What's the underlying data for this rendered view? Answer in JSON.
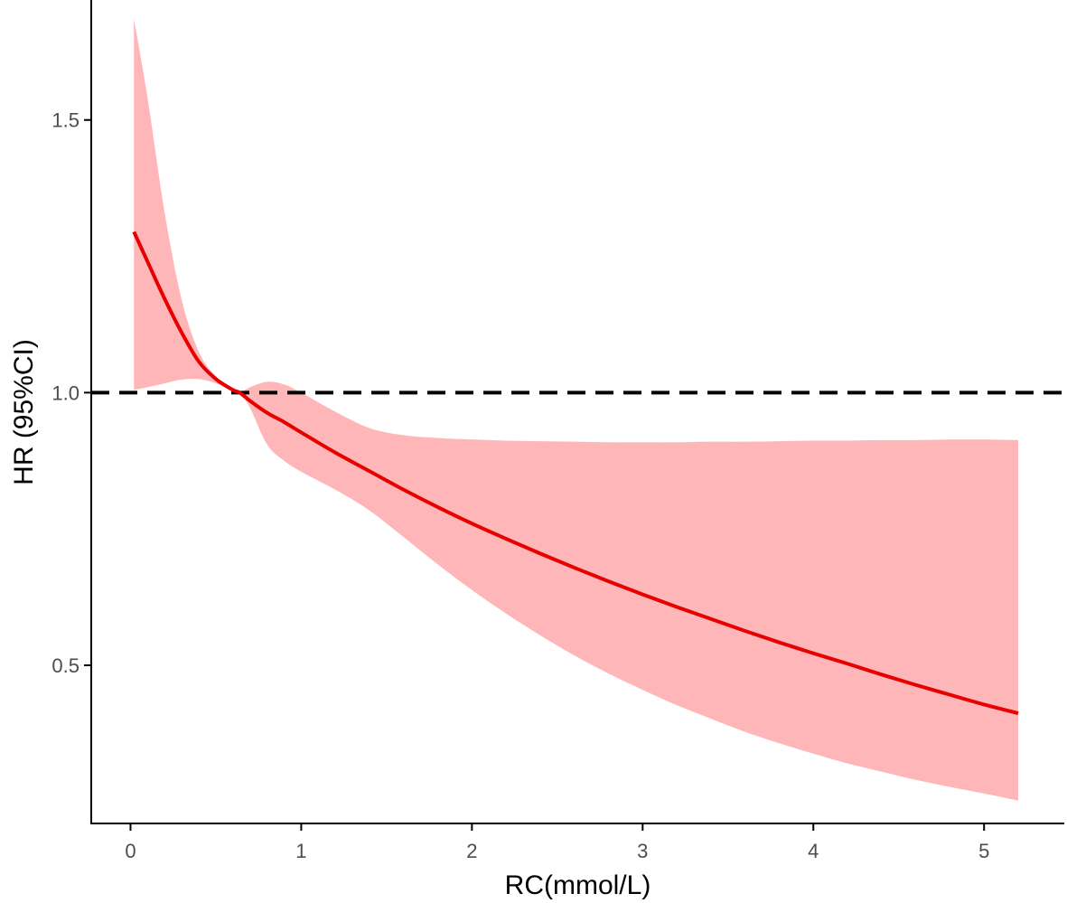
{
  "chart_data": {
    "type": "line",
    "title": "",
    "xlabel": "RC(mmol/L)",
    "ylabel": "HR (95%CI)",
    "xlim": [
      -0.23,
      5.47
    ],
    "ylim": [
      0.21,
      1.72
    ],
    "x_ticks": [
      0,
      1,
      2,
      3,
      4,
      5
    ],
    "x_tick_labels": [
      "0",
      "1",
      "2",
      "3",
      "4",
      "5"
    ],
    "y_ticks": [
      0.5,
      1.0,
      1.5
    ],
    "y_tick_labels": [
      "0.5",
      "1.0",
      "1.5"
    ],
    "grid": false,
    "legend": "none",
    "reference_line": {
      "y": 1.0,
      "style": "dashed",
      "color": "#000000"
    },
    "series": [
      {
        "x": [
          0.02,
          0.1,
          0.2,
          0.3,
          0.4,
          0.5,
          0.6,
          0.64,
          0.7,
          0.8,
          0.9,
          1.0,
          1.2,
          1.4,
          1.6,
          1.8,
          2.0,
          2.2,
          2.4,
          2.6,
          2.8,
          3.0,
          3.2,
          3.4,
          3.6,
          3.8,
          4.0,
          4.2,
          4.4,
          4.6,
          4.8,
          5.0,
          5.2
        ],
        "values": [
          1.295,
          1.24,
          1.172,
          1.11,
          1.057,
          1.025,
          1.005,
          1.0,
          0.985,
          0.963,
          0.946,
          0.927,
          0.89,
          0.856,
          0.822,
          0.79,
          0.76,
          0.732,
          0.705,
          0.679,
          0.654,
          0.63,
          0.607,
          0.585,
          0.563,
          0.542,
          0.522,
          0.503,
          0.483,
          0.464,
          0.446,
          0.428,
          0.412
        ],
        "color": "#e60000"
      }
    ],
    "ci": {
      "x": [
        0.02,
        0.1,
        0.2,
        0.3,
        0.4,
        0.5,
        0.6,
        0.64,
        0.7,
        0.8,
        0.9,
        1.0,
        1.2,
        1.4,
        1.6,
        1.8,
        2.0,
        2.2,
        2.4,
        2.6,
        2.8,
        3.0,
        3.2,
        3.4,
        3.6,
        3.8,
        4.0,
        4.2,
        4.4,
        4.6,
        4.8,
        5.0,
        5.2
      ],
      "upper": [
        1.685,
        1.54,
        1.33,
        1.17,
        1.075,
        1.03,
        1.005,
        1.0,
        1.01,
        1.02,
        1.015,
        1.0,
        0.965,
        0.935,
        0.922,
        0.917,
        0.914,
        0.912,
        0.911,
        0.91,
        0.909,
        0.909,
        0.909,
        0.91,
        0.91,
        0.911,
        0.912,
        0.912,
        0.913,
        0.913,
        0.914,
        0.914,
        0.913
      ],
      "lower": [
        1.005,
        1.01,
        1.017,
        1.024,
        1.025,
        1.017,
        1.004,
        1.0,
        0.972,
        0.905,
        0.875,
        0.855,
        0.822,
        0.784,
        0.735,
        0.685,
        0.638,
        0.595,
        0.555,
        0.518,
        0.485,
        0.455,
        0.427,
        0.402,
        0.378,
        0.357,
        0.338,
        0.32,
        0.305,
        0.29,
        0.277,
        0.265,
        0.252
      ],
      "color": "#ffb6b8"
    },
    "axis_color": "#000000"
  }
}
